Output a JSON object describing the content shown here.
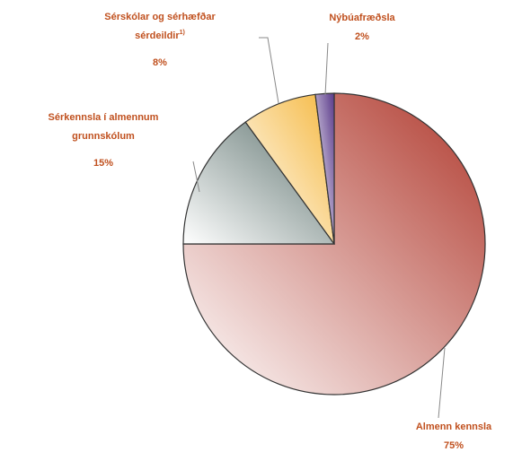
{
  "chart_data": {
    "type": "pie",
    "categories": [
      [
        "Almenn kennsla"
      ],
      [
        "Sérkennsla í almennum",
        "grunnskólum"
      ],
      [
        "Sérskólar og sérhæfðar",
        "sérdeildir"
      ],
      [
        "Nýbúafræðsla"
      ]
    ],
    "category_notes": [
      null,
      null,
      "1)",
      null
    ],
    "values": [
      75,
      15,
      8,
      2
    ],
    "value_labels": [
      "75%",
      "15%",
      "8%",
      "2%"
    ],
    "colors": [
      "#b03a2e",
      "#5f7470",
      "#f5b840",
      "#5a3a8a"
    ]
  }
}
